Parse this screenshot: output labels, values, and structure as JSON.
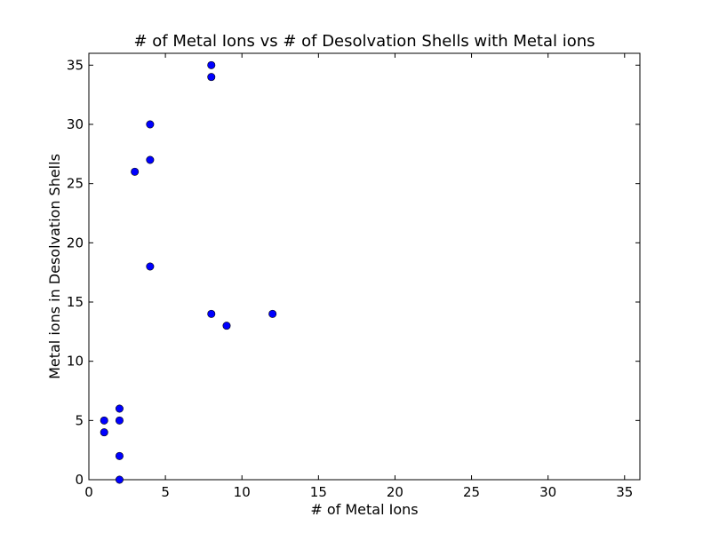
{
  "chart_data": {
    "type": "scatter",
    "title": "# of Metal Ions vs # of Desolvation Shells with Metal ions",
    "xlabel": "# of Metal Ions",
    "ylabel": "Metal ions in Desolvation Shells",
    "xlim": [
      0,
      36
    ],
    "ylim": [
      0,
      36
    ],
    "xticks": [
      0,
      5,
      10,
      15,
      20,
      25,
      30,
      35
    ],
    "yticks": [
      0,
      5,
      10,
      15,
      20,
      25,
      30,
      35
    ],
    "grid": false,
    "marker_color": "#0000ff",
    "marker_edge_color": "#000000",
    "points": [
      {
        "x": 8,
        "y": 35
      },
      {
        "x": 8,
        "y": 34
      },
      {
        "x": 4,
        "y": 30
      },
      {
        "x": 4,
        "y": 27
      },
      {
        "x": 3,
        "y": 26
      },
      {
        "x": 4,
        "y": 18
      },
      {
        "x": 8,
        "y": 14
      },
      {
        "x": 12,
        "y": 14
      },
      {
        "x": 9,
        "y": 13
      },
      {
        "x": 2,
        "y": 6
      },
      {
        "x": 1,
        "y": 5
      },
      {
        "x": 2,
        "y": 5
      },
      {
        "x": 1,
        "y": 4
      },
      {
        "x": 2,
        "y": 2
      },
      {
        "x": 2,
        "y": 0
      }
    ]
  }
}
